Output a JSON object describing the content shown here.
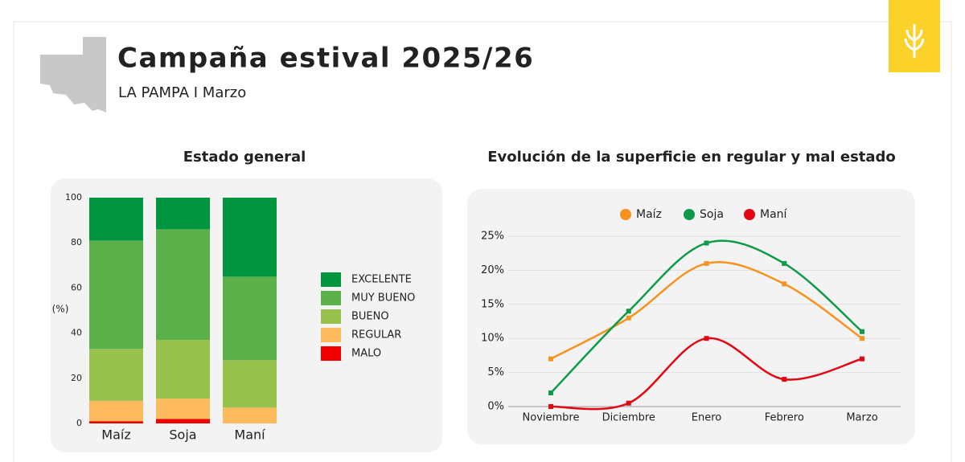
{
  "header": {
    "title": "Campaña estival 2025/26",
    "subtitle": "LA PAMPA I Marzo"
  },
  "chart_data": [
    {
      "type": "stacked_bar",
      "title": "Estado general",
      "y_label": "(%)",
      "categories": [
        "Maíz",
        "Soja",
        "Maní"
      ],
      "series": [
        {
          "name": "MALO",
          "color": "#f00000",
          "values": [
            1,
            2,
            0
          ]
        },
        {
          "name": "REGULAR",
          "color": "#fdbb5e",
          "values": [
            9,
            9,
            7
          ]
        },
        {
          "name": "BUENO",
          "color": "#96c24d",
          "values": [
            23,
            26,
            21
          ]
        },
        {
          "name": "MUY BUENO",
          "color": "#5bb04a",
          "values": [
            48,
            49,
            37
          ]
        },
        {
          "name": "EXCELENTE",
          "color": "#009640",
          "values": [
            19,
            14,
            35
          ]
        }
      ],
      "ylim": [
        0,
        100
      ],
      "yticks": [
        0,
        20,
        40,
        60,
        80,
        100
      ],
      "grid": false,
      "legend": "right"
    },
    {
      "type": "line",
      "title": "Evolución de la superficie en regular y mal estado",
      "categories": [
        "Noviembre",
        "Diciembre",
        "Enero",
        "Febrero",
        "Marzo"
      ],
      "series": [
        {
          "name": "Maíz",
          "color": "#f7921e",
          "values": [
            7,
            13,
            21,
            18,
            10
          ]
        },
        {
          "name": "Soja",
          "color": "#0e9a48",
          "values": [
            2,
            14,
            24,
            21,
            11
          ]
        },
        {
          "name": "Maní",
          "color": "#e30613",
          "values": [
            0,
            0.5,
            10,
            4,
            7
          ]
        }
      ],
      "ylim": [
        0,
        25
      ],
      "yticks": [
        {
          "value": 0,
          "label": "0%"
        },
        {
          "value": 5,
          "label": "5%"
        },
        {
          "value": 10,
          "label": "10%"
        },
        {
          "value": 15,
          "label": "15%"
        },
        {
          "value": 20,
          "label": "20%"
        },
        {
          "value": 25,
          "label": "25%"
        }
      ],
      "grid": true,
      "smooth": true,
      "legend": "top"
    }
  ]
}
